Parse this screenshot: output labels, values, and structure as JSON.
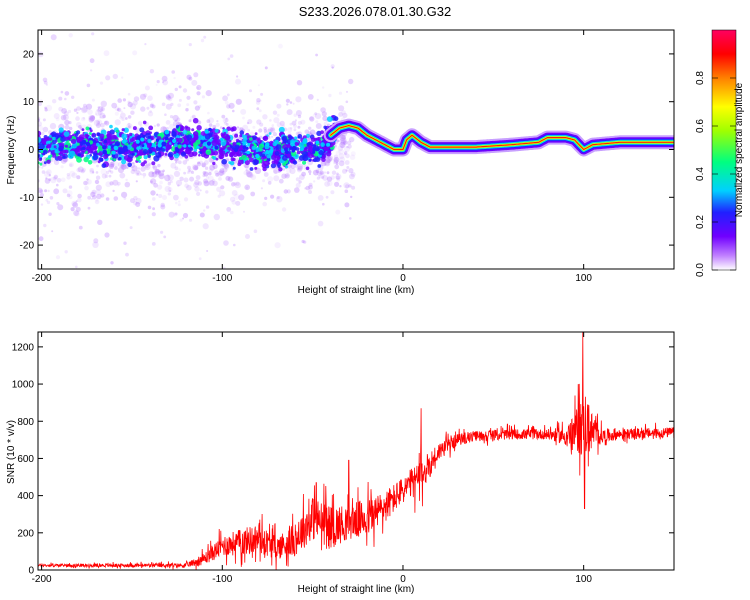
{
  "title": "S233.2026.078.01.30.G32",
  "chart_data": [
    {
      "type": "heatmap",
      "xlabel": "Height of straight line (km)",
      "ylabel": "Frequency (Hz)",
      "xlim": [
        -202,
        150
      ],
      "ylim": [
        -25,
        25
      ],
      "xticks": [
        -200,
        -100,
        0,
        100
      ],
      "xtick_labels": [
        "-200",
        "-100",
        "0",
        "100"
      ],
      "yticks": [
        20,
        10,
        0,
        -10,
        -20
      ],
      "ytick_labels": [
        "20",
        "10",
        "0",
        "-10",
        "-20"
      ],
      "colorbar": {
        "label": "Normalized spectral amplitude",
        "range": [
          0,
          1
        ],
        "ticks": [
          0.0,
          0.2,
          0.4,
          0.6,
          0.8
        ],
        "tick_labels": [
          "0.0",
          "0.2",
          "0.4",
          "0.6",
          "0.8"
        ],
        "colors": [
          "#ffffff",
          "#c080ff",
          "#7000ff",
          "#2020ff",
          "#00d0ff",
          "#00ff80",
          "#a0ff00",
          "#ffff00",
          "#ff8000",
          "#ff0000",
          "#ff0060"
        ]
      },
      "ridge": {
        "x": [
          -202,
          -180,
          -160,
          -140,
          -120,
          -100,
          -80,
          -60,
          -45,
          -40,
          -35,
          -30,
          -25,
          -20,
          -15,
          -10,
          -5,
          0,
          2,
          5,
          10,
          15,
          20,
          40,
          60,
          75,
          80,
          90,
          95,
          100,
          105,
          120,
          150
        ],
        "y": [
          0.5,
          1,
          0.5,
          1,
          2,
          1,
          -0.5,
          0,
          0,
          3,
          4.5,
          5,
          4.5,
          3,
          2,
          1,
          0,
          0,
          2,
          3,
          1.5,
          0.5,
          0.5,
          0.5,
          1,
          1.5,
          2.5,
          2.5,
          2,
          0,
          1,
          1.5,
          1.5
        ]
      }
    },
    {
      "type": "line",
      "xlabel": "Height of straight line (km)",
      "ylabel": "SNR (10 * v/v)",
      "xlim": [
        -202,
        150
      ],
      "ylim": [
        0,
        1280
      ],
      "xticks": [
        -200,
        -100,
        0,
        100
      ],
      "xtick_labels": [
        "-200",
        "-100",
        "0",
        "100"
      ],
      "yticks": [
        0,
        200,
        400,
        600,
        800,
        1000,
        1200
      ],
      "ytick_labels": [
        "0",
        "200",
        "400",
        "600",
        "800",
        "1000",
        "1200"
      ],
      "series": [
        {
          "name": "SNR",
          "color": "#ff0000",
          "envelope_x": [
            -202,
            -150,
            -120,
            -110,
            -100,
            -90,
            -80,
            -70,
            -60,
            -50,
            -40,
            -30,
            -20,
            -10,
            0,
            10,
            20,
            30,
            40,
            60,
            80,
            90,
            95,
            100,
            105,
            110,
            120,
            150
          ],
          "envelope_y": [
            25,
            25,
            25,
            60,
            130,
            150,
            170,
            120,
            160,
            280,
            230,
            260,
            280,
            340,
            430,
            500,
            640,
            700,
            720,
            730,
            730,
            720,
            740,
            800,
            740,
            720,
            730,
            740
          ],
          "noise_amp": [
            10,
            12,
            15,
            40,
            70,
            90,
            100,
            80,
            110,
            150,
            140,
            120,
            130,
            110,
            90,
            120,
            60,
            40,
            35,
            35,
            35,
            60,
            120,
            250,
            120,
            50,
            35,
            35
          ],
          "spikes": [
            {
              "x": 10,
              "y": 870
            },
            {
              "x": 99.5,
              "y": 1280
            },
            {
              "x": 100.5,
              "y": 330
            },
            {
              "x": 97,
              "y": 1000
            },
            {
              "x": -30,
              "y": 590
            },
            {
              "x": -48,
              "y": 470
            }
          ]
        }
      ]
    }
  ]
}
